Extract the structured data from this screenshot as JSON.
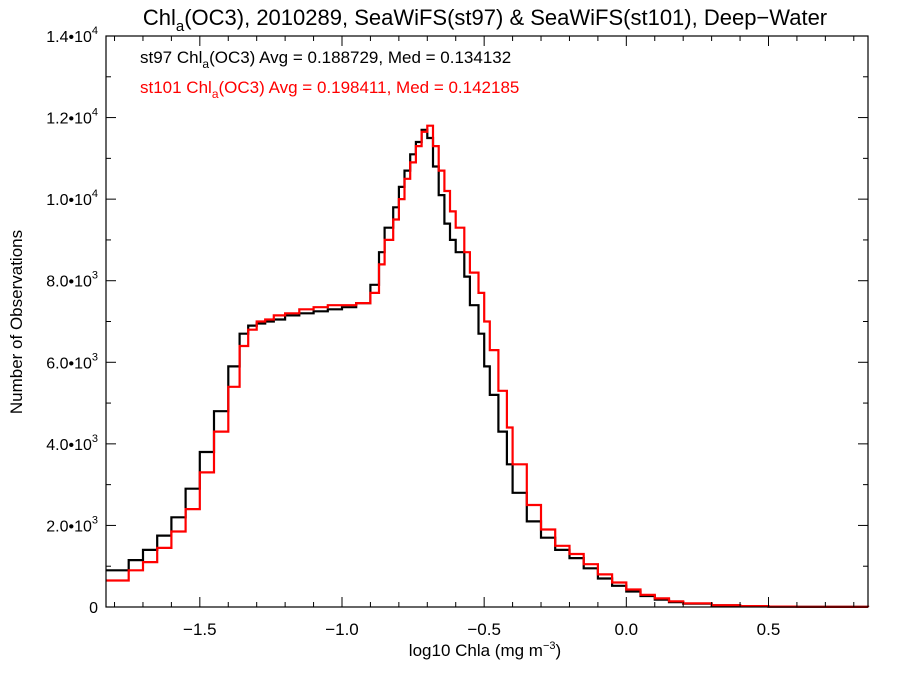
{
  "chart_data": {
    "type": "line",
    "step": true,
    "title": {
      "prefix": "Chl",
      "sub": "a",
      "rest": "(OC3), 2010289, SeaWiFS(st97) & SeaWiFS(st101), Deep−Water"
    },
    "xlabel": {
      "prefix": "log10 Chla (mg m",
      "sup": "−3",
      "suffix": ")"
    },
    "ylabel": "Number of Observations",
    "xlim": [
      -1.83,
      0.85
    ],
    "ylim": [
      0,
      14000
    ],
    "xticks": [
      {
        "value": -1.5,
        "label": "−1.5"
      },
      {
        "value": -1.0,
        "label": "−1.0"
      },
      {
        "value": -0.5,
        "label": "−0.5"
      },
      {
        "value": 0.0,
        "label": "0.0"
      },
      {
        "value": 0.5,
        "label": "0.5"
      }
    ],
    "yticks": [
      {
        "value": 0,
        "mant": "0",
        "exp": ""
      },
      {
        "value": 2000,
        "mant": "2.0•10",
        "exp": "3"
      },
      {
        "value": 4000,
        "mant": "4.0•10",
        "exp": "3"
      },
      {
        "value": 6000,
        "mant": "6.0•10",
        "exp": "3"
      },
      {
        "value": 8000,
        "mant": "8.0•10",
        "exp": "3"
      },
      {
        "value": 10000,
        "mant": "1.0•10",
        "exp": "4"
      },
      {
        "value": 12000,
        "mant": "1.2•10",
        "exp": "4"
      },
      {
        "value": 14000,
        "mant": "1.4•10",
        "exp": "4"
      }
    ],
    "grid": false,
    "annotations": [
      {
        "prefix": "st97 Chl",
        "sub": "a",
        "rest": "(OC3) Avg = 0.188729, Med = 0.134132",
        "color": "#000000"
      },
      {
        "prefix": "st101 Chl",
        "sub": "a",
        "rest": "(OC3) Avg = 0.198411, Med = 0.142185",
        "color": "#ff0000"
      }
    ],
    "series": [
      {
        "color": "#000000",
        "x": [
          -1.83,
          -1.75,
          -1.7,
          -1.65,
          -1.6,
          -1.55,
          -1.5,
          -1.45,
          -1.4,
          -1.36,
          -1.33,
          -1.3,
          -1.27,
          -1.24,
          -1.2,
          -1.15,
          -1.1,
          -1.05,
          -1.0,
          -0.95,
          -0.9,
          -0.87,
          -0.85,
          -0.82,
          -0.8,
          -0.78,
          -0.76,
          -0.74,
          -0.72,
          -0.7,
          -0.68,
          -0.66,
          -0.64,
          -0.62,
          -0.6,
          -0.57,
          -0.55,
          -0.52,
          -0.5,
          -0.48,
          -0.45,
          -0.42,
          -0.4,
          -0.35,
          -0.3,
          -0.25,
          -0.2,
          -0.15,
          -0.1,
          -0.05,
          0.0,
          0.05,
          0.1,
          0.15,
          0.2,
          0.3,
          0.4,
          0.5,
          0.6,
          0.7,
          0.85
        ],
        "y": [
          900,
          1150,
          1400,
          1750,
          2200,
          2900,
          3800,
          4800,
          5900,
          6700,
          6900,
          6950,
          7000,
          7050,
          7150,
          7200,
          7250,
          7300,
          7350,
          7450,
          7900,
          8700,
          9300,
          9800,
          10300,
          10700,
          11100,
          11400,
          11700,
          11500,
          10800,
          10100,
          9400,
          9000,
          8700,
          8100,
          7400,
          6700,
          5900,
          5200,
          4300,
          3500,
          2800,
          2100,
          1700,
          1400,
          1200,
          950,
          700,
          520,
          380,
          270,
          180,
          120,
          80,
          40,
          20,
          10,
          5,
          2,
          0
        ]
      },
      {
        "color": "#ff0000",
        "x": [
          -1.83,
          -1.75,
          -1.7,
          -1.65,
          -1.6,
          -1.55,
          -1.5,
          -1.45,
          -1.4,
          -1.36,
          -1.33,
          -1.3,
          -1.27,
          -1.24,
          -1.2,
          -1.15,
          -1.1,
          -1.05,
          -1.0,
          -0.95,
          -0.9,
          -0.87,
          -0.85,
          -0.82,
          -0.8,
          -0.78,
          -0.76,
          -0.74,
          -0.72,
          -0.7,
          -0.68,
          -0.66,
          -0.64,
          -0.62,
          -0.6,
          -0.57,
          -0.55,
          -0.52,
          -0.5,
          -0.48,
          -0.45,
          -0.42,
          -0.4,
          -0.35,
          -0.3,
          -0.25,
          -0.2,
          -0.15,
          -0.1,
          -0.05,
          0.0,
          0.05,
          0.1,
          0.15,
          0.2,
          0.3,
          0.4,
          0.5,
          0.6,
          0.7,
          0.85
        ],
        "y": [
          650,
          900,
          1100,
          1450,
          1850,
          2400,
          3300,
          4300,
          5400,
          6400,
          6800,
          7000,
          7050,
          7150,
          7200,
          7300,
          7350,
          7400,
          7400,
          7450,
          7700,
          8400,
          9000,
          9500,
          10000,
          10500,
          10900,
          11300,
          11650,
          11800,
          11300,
          10700,
          10200,
          9700,
          9300,
          8700,
          8200,
          7700,
          7000,
          6300,
          5300,
          4400,
          3500,
          2500,
          1900,
          1500,
          1300,
          1050,
          800,
          600,
          430,
          300,
          210,
          140,
          90,
          45,
          22,
          11,
          5,
          2,
          0
        ]
      }
    ]
  }
}
